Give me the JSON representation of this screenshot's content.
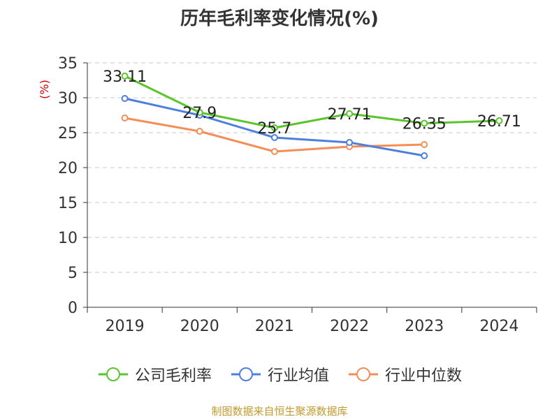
{
  "chart_data": {
    "type": "line",
    "title": "历年毛利率变化情况(%)",
    "ylabel": "(%)",
    "xlabel": "",
    "categories": [
      "2019",
      "2020",
      "2021",
      "2022",
      "2023",
      "2024"
    ],
    "ylim": [
      0,
      35
    ],
    "yticks": [
      0,
      5,
      10,
      15,
      20,
      25,
      30,
      35
    ],
    "grid": true,
    "legend_position": "bottom",
    "series": [
      {
        "name": "公司毛利率",
        "color": "#5bc42c",
        "values": [
          33.11,
          27.9,
          25.7,
          27.71,
          26.35,
          26.71
        ],
        "labels": [
          "33.11",
          "27.9",
          "25.7",
          "27.71",
          "26.35",
          "26.71"
        ]
      },
      {
        "name": "行业均值",
        "color": "#4e7fde",
        "values": [
          29.9,
          27.5,
          24.3,
          23.6,
          21.7,
          null
        ]
      },
      {
        "name": "行业中位数",
        "color": "#f58d57",
        "values": [
          27.1,
          25.2,
          22.3,
          23.0,
          23.3,
          null
        ]
      }
    ]
  },
  "footer": {
    "source": "制图数据来自恒生聚源数据库"
  }
}
